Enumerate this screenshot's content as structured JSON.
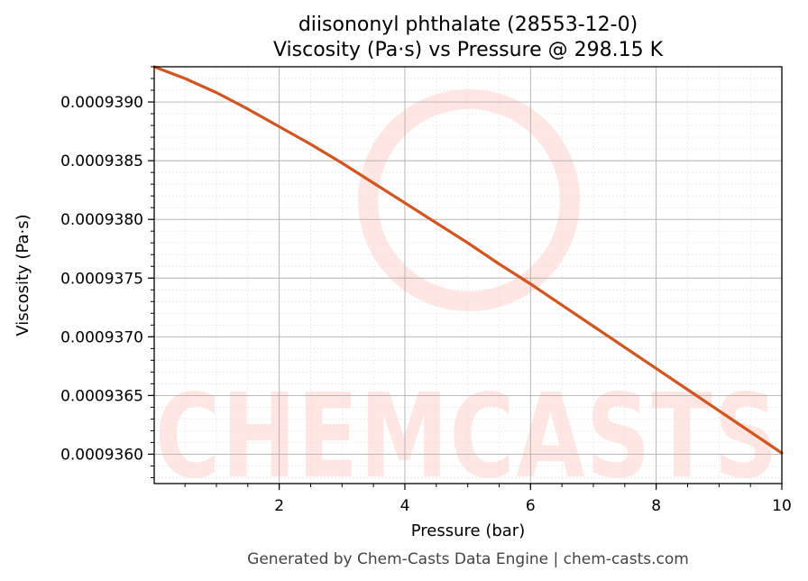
{
  "chart_data": {
    "type": "line",
    "title": "diisononyl phthalate (28553-12-0)",
    "subtitle": "Viscosity (Pa·s) vs Pressure @ 298.15 K",
    "xlabel": "Pressure (bar)",
    "ylabel": "Viscosity (Pa·s)",
    "xlim": [
      0.01,
      10
    ],
    "ylim": [
      0.00093575,
      0.0009393
    ],
    "x_ticks": [
      2,
      4,
      6,
      8,
      10
    ],
    "x_tick_labels": [
      "2",
      "4",
      "6",
      "8",
      "10"
    ],
    "y_ticks": [
      0.000936,
      0.0009365,
      0.000937,
      0.0009375,
      0.000938,
      0.0009385,
      0.000939
    ],
    "y_tick_labels": [
      "0.0009360",
      "0.0009365",
      "0.0009370",
      "0.0009375",
      "0.0009380",
      "0.0009385",
      "0.0009390"
    ],
    "grid": true,
    "series": [
      {
        "color": "#d4541e",
        "x": [
          0.01,
          0.5,
          1.0,
          1.5,
          2.0,
          2.5,
          3.0,
          3.5,
          4.0,
          4.5,
          5.0,
          5.5,
          6.0,
          6.5,
          7.0,
          7.5,
          8.0,
          8.5,
          9.0,
          9.5,
          10.0
        ],
        "y": [
          0.0009393,
          0.0009392,
          0.00093908,
          0.00093894,
          0.00093879,
          0.00093864,
          0.00093848,
          0.00093831,
          0.00093814,
          0.00093797,
          0.0009378,
          0.00093762,
          0.00093745,
          0.00093727,
          0.00093709,
          0.00093691,
          0.00093673,
          0.00093655,
          0.00093637,
          0.00093619,
          0.00093601
        ]
      }
    ]
  },
  "watermark": {
    "text": "CHEMCASTS",
    "color": "#ffe6e3"
  },
  "footer": "Generated by Chem-Casts Data Engine | chem-casts.com"
}
